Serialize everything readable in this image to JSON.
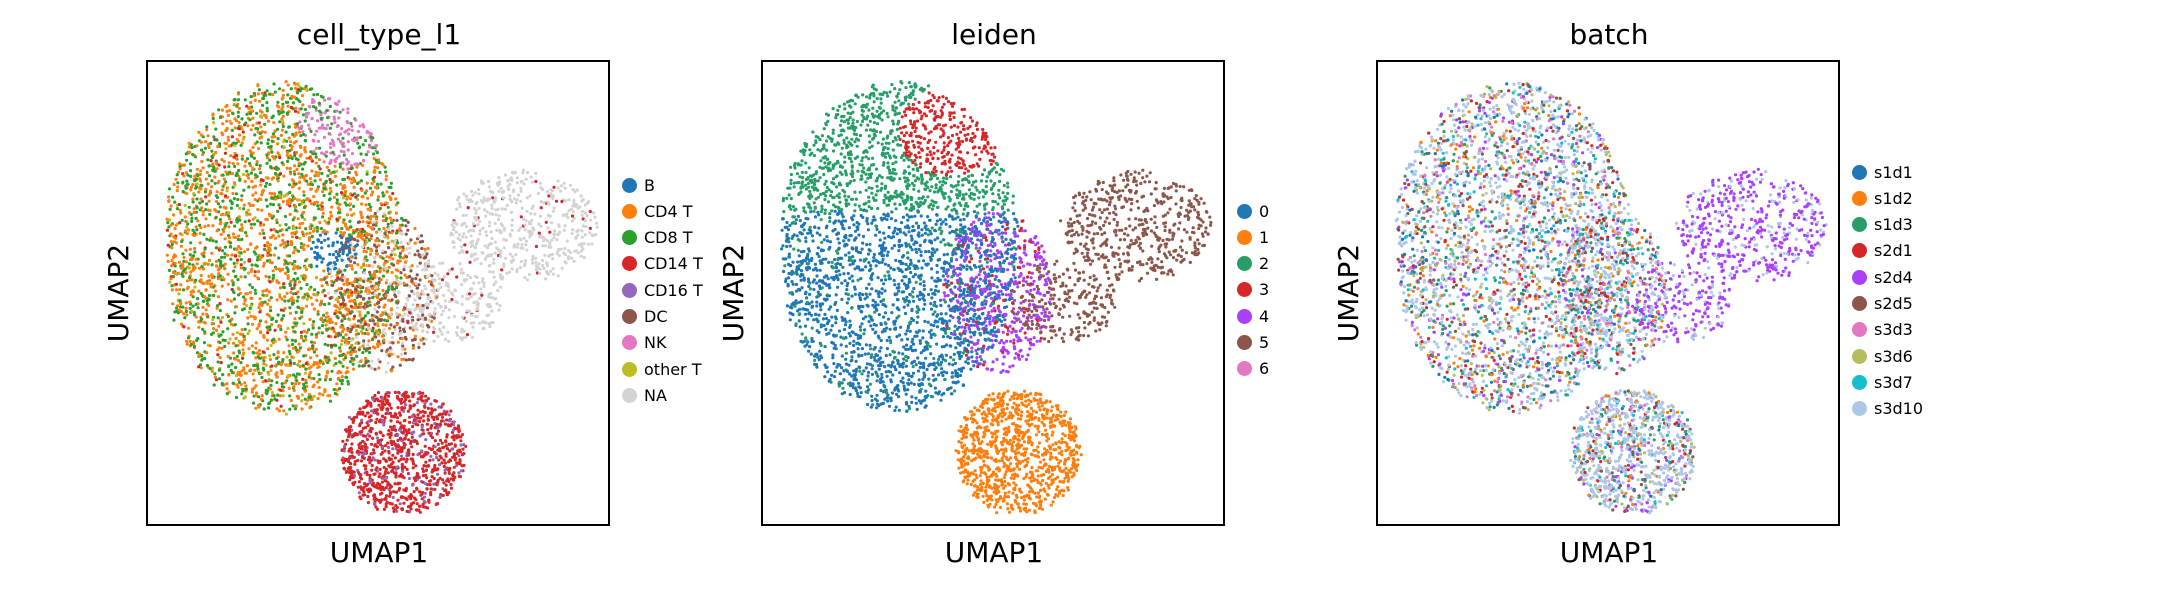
{
  "chart_data": [
    {
      "type": "scatter",
      "title": "cell_type_l1",
      "xlabel": "UMAP1",
      "ylabel": "UMAP2",
      "grid": false,
      "legend_position": "right",
      "legend": [
        {
          "label": "B",
          "color": "#1f77b4"
        },
        {
          "label": "CD4 T",
          "color": "#ff7f0e"
        },
        {
          "label": "CD8 T",
          "color": "#2ca02c"
        },
        {
          "label": "CD14 T",
          "color": "#d62728"
        },
        {
          "label": "CD16 T",
          "color": "#9467bd"
        },
        {
          "label": "DC",
          "color": "#8c564b"
        },
        {
          "label": "NK",
          "color": "#e377c2"
        },
        {
          "label": "other T",
          "color": "#bcbd22"
        },
        {
          "label": "NA",
          "color": "#d3d3d3"
        }
      ]
    },
    {
      "type": "scatter",
      "title": "leiden",
      "xlabel": "UMAP1",
      "ylabel": "UMAP2",
      "grid": false,
      "legend_position": "right",
      "legend": [
        {
          "label": "0",
          "color": "#1f77b4"
        },
        {
          "label": "1",
          "color": "#ff7f0e"
        },
        {
          "label": "2",
          "color": "#279e68"
        },
        {
          "label": "3",
          "color": "#d62728"
        },
        {
          "label": "4",
          "color": "#aa40fc"
        },
        {
          "label": "5",
          "color": "#8c564b"
        },
        {
          "label": "6",
          "color": "#e377c2"
        }
      ]
    },
    {
      "type": "scatter",
      "title": "batch",
      "xlabel": "UMAP1",
      "ylabel": "UMAP2",
      "grid": false,
      "legend_position": "right",
      "legend": [
        {
          "label": "s1d1",
          "color": "#1f77b4"
        },
        {
          "label": "s1d2",
          "color": "#ff7f0e"
        },
        {
          "label": "s1d3",
          "color": "#279e68"
        },
        {
          "label": "s2d1",
          "color": "#d62728"
        },
        {
          "label": "s2d4",
          "color": "#aa40fc"
        },
        {
          "label": "s2d5",
          "color": "#8c564b"
        },
        {
          "label": "s3d3",
          "color": "#e377c2"
        },
        {
          "label": "s3d6",
          "color": "#b5bd61"
        },
        {
          "label": "s3d7",
          "color": "#17becf"
        },
        {
          "label": "s3d10",
          "color": "#aec7e8"
        }
      ]
    }
  ]
}
